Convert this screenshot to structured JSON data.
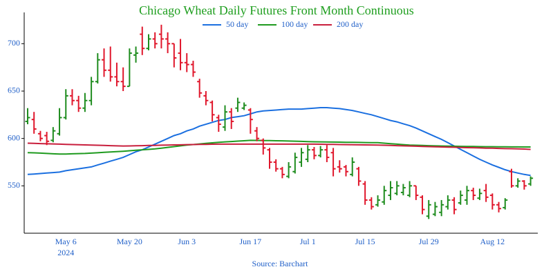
{
  "chart_data": {
    "type": "ohlc",
    "title": "Chicago Wheat Daily Futures Front Month Continuous",
    "title_color": "#1e9e1e",
    "source": "Source: Barchart",
    "year_label": "2024",
    "axis_label_color": "#1f5fc8",
    "categories": [
      null,
      null,
      null,
      null,
      null,
      null,
      "May 6",
      null,
      null,
      null,
      null,
      null,
      null,
      null,
      null,
      null,
      "May 20",
      null,
      null,
      null,
      null,
      null,
      null,
      null,
      null,
      "Jun 3",
      null,
      null,
      null,
      null,
      null,
      null,
      null,
      null,
      null,
      "Jun 17",
      null,
      null,
      null,
      null,
      null,
      null,
      null,
      null,
      "Jul 1",
      null,
      null,
      null,
      null,
      null,
      null,
      null,
      null,
      "Jul 15",
      null,
      null,
      null,
      null,
      null,
      null,
      null,
      null,
      null,
      "Jul 29",
      null,
      null,
      null,
      null,
      null,
      null,
      null,
      null,
      null,
      "Aug 12",
      null,
      null,
      null,
      null,
      null,
      null
    ],
    "ohlc": {
      "up_color": "#1e8c1e",
      "down_color": "#e0162b",
      "open": [
        618,
        620,
        605,
        603,
        598,
        605,
        622,
        645,
        640,
        632,
        640,
        660,
        683,
        672,
        665,
        660,
        655,
        688,
        710,
        695,
        705,
        710,
        705,
        700,
        690,
        680,
        678,
        660,
        645,
        638,
        622,
        612,
        628,
        632,
        632,
        630,
        608,
        598,
        588,
        575,
        568,
        560,
        565,
        575,
        578,
        588,
        582,
        588,
        585,
        570,
        570,
        562,
        568,
        552,
        535,
        530,
        533,
        540,
        542,
        543,
        540,
        550,
        538,
        518,
        520,
        522,
        528,
        535,
        532,
        535,
        545,
        537,
        545,
        540,
        530,
        527,
        565,
        550,
        555,
        552
      ],
      "high": [
        632,
        628,
        608,
        607,
        612,
        632,
        652,
        652,
        645,
        648,
        665,
        690,
        695,
        697,
        680,
        675,
        695,
        697,
        718,
        710,
        712,
        720,
        712,
        700,
        705,
        690,
        682,
        663,
        650,
        640,
        625,
        635,
        632,
        643,
        638,
        632,
        612,
        600,
        590,
        578,
        570,
        575,
        585,
        590,
        593,
        591,
        592,
        593,
        590,
        577,
        572,
        580,
        570,
        555,
        538,
        540,
        550,
        555,
        555,
        552,
        555,
        550,
        540,
        535,
        533,
        535,
        540,
        538,
        545,
        550,
        548,
        547,
        552,
        542,
        533,
        537,
        568,
        558,
        556,
        560
      ],
      "low": [
        615,
        605,
        597,
        593,
        596,
        603,
        620,
        635,
        628,
        628,
        635,
        658,
        665,
        660,
        655,
        650,
        655,
        680,
        688,
        693,
        695,
        695,
        690,
        675,
        672,
        670,
        665,
        643,
        635,
        618,
        607,
        608,
        610,
        628,
        630,
        605,
        597,
        583,
        568,
        565,
        558,
        558,
        563,
        570,
        575,
        578,
        580,
        575,
        560,
        564,
        560,
        560,
        550,
        530,
        525,
        528,
        530,
        535,
        540,
        540,
        538,
        535,
        520,
        515,
        518,
        518,
        525,
        520,
        530,
        530,
        535,
        535,
        533,
        525,
        522,
        525,
        548,
        548,
        546,
        550
      ],
      "close": [
        622,
        610,
        600,
        597,
        608,
        622,
        645,
        640,
        632,
        640,
        660,
        683,
        672,
        665,
        660,
        655,
        690,
        690,
        695,
        705,
        700,
        705,
        700,
        685,
        680,
        678,
        670,
        648,
        640,
        625,
        615,
        628,
        618,
        638,
        635,
        620,
        600,
        590,
        575,
        568,
        562,
        570,
        580,
        585,
        588,
        582,
        588,
        580,
        568,
        568,
        565,
        575,
        555,
        535,
        528,
        535,
        545,
        548,
        550,
        548,
        550,
        540,
        525,
        530,
        528,
        530,
        535,
        525,
        540,
        545,
        540,
        542,
        538,
        530,
        526,
        535,
        550,
        555,
        550,
        558
      ]
    },
    "series": [
      {
        "name": "50 day",
        "color": "#1a6fe0",
        "values": [
          562,
          562.5,
          563,
          563.5,
          564,
          564.5,
          566,
          567,
          568,
          569,
          570,
          572,
          574,
          576,
          578,
          580,
          583,
          586,
          588,
          591,
          594,
          597,
          600,
          603,
          605,
          608,
          610,
          613,
          615,
          617,
          619,
          620,
          622,
          623,
          624,
          626,
          628,
          629,
          629.5,
          630,
          630.5,
          631,
          631,
          631,
          631.5,
          632,
          632.5,
          632.5,
          632,
          631.5,
          630.5,
          629.5,
          628,
          626.5,
          625,
          623,
          621,
          619,
          617.5,
          615.5,
          613.5,
          611,
          608,
          605,
          602,
          599,
          595.5,
          592,
          588.5,
          585,
          581.5,
          578,
          575,
          572,
          569.5,
          567,
          565,
          563.5,
          562,
          561
        ]
      },
      {
        "name": "100 day",
        "color": "#1e9a1e",
        "values": [
          585,
          584.8,
          584.5,
          584.2,
          583.8,
          583.5,
          583.6,
          583.8,
          584,
          584.2,
          584.5,
          584.9,
          585.3,
          585.7,
          586.1,
          586.5,
          587,
          587.5,
          588,
          588.5,
          589,
          589.8,
          590.6,
          591.4,
          592.2,
          593,
          593.6,
          594.2,
          594.8,
          595.4,
          596,
          596.4,
          596.8,
          597.2,
          597.6,
          598,
          597.9,
          597.8,
          597.7,
          597.6,
          597.5,
          597.3,
          597.1,
          596.9,
          596.7,
          596.5,
          596.4,
          596.3,
          596.2,
          596.1,
          596,
          595.9,
          595.8,
          595.7,
          595.6,
          595.5,
          595,
          594.5,
          594,
          593.5,
          593,
          592.8,
          592.6,
          592.4,
          592.2,
          592,
          591.9,
          591.8,
          591.7,
          591.6,
          591.5,
          591.4,
          591.3,
          591.3,
          591.2,
          591.2,
          591.1,
          591.1,
          591,
          591
        ]
      },
      {
        "name": "200 day",
        "color": "#c81e3c",
        "values": [
          595,
          594.8,
          594.6,
          594.4,
          594.2,
          594,
          593.8,
          593.6,
          593.4,
          593.2,
          593,
          592.8,
          592.6,
          592.4,
          592.2,
          592,
          592.1,
          592.3,
          592.4,
          592.6,
          592.7,
          592.9,
          593,
          593.2,
          593.3,
          593.5,
          593.6,
          593.7,
          593.8,
          593.9,
          594,
          594,
          594,
          594,
          594,
          594,
          594,
          594,
          594,
          594,
          594,
          594,
          594,
          594,
          594,
          594,
          593.9,
          593.8,
          593.7,
          593.6,
          593.5,
          593.4,
          593.3,
          593.2,
          593.1,
          593,
          592.8,
          592.6,
          592.4,
          592.2,
          592,
          591.8,
          591.6,
          591.4,
          591.2,
          591,
          590.8,
          590.7,
          590.5,
          590.3,
          590.2,
          590,
          589.8,
          589.7,
          589.5,
          589.3,
          589.2,
          589,
          588.8,
          588.5
        ]
      }
    ],
    "ylim": [
      500,
      733
    ],
    "yticks": [
      550,
      600,
      650,
      700
    ],
    "grid": false
  }
}
